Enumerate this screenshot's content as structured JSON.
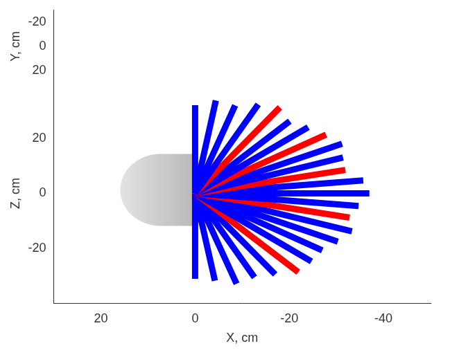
{
  "chart_data": {
    "type": "radial_bars",
    "xlabel": "X, cm",
    "ylabel": "Y, cm",
    "zlabel": "Z, cm",
    "xlim": [
      30,
      -50
    ],
    "xticks": [
      20,
      0,
      -20,
      -40
    ],
    "ylim": [
      30,
      -30
    ],
    "yticks": [
      -20,
      0,
      20
    ],
    "zlim": [
      -40,
      40
    ],
    "zticks": [
      -20,
      0,
      20
    ],
    "grid": false,
    "origin": {
      "x": 0,
      "z": 0
    },
    "bars": {
      "x": [
        0,
        -4.4,
        -8.5,
        -13.4,
        -18.0,
        -20.1,
        -24.0,
        -27.8,
        -31.2,
        -31.4,
        -31.9,
        -35.7,
        -37,
        -34.7,
        -32.8,
        -33.3,
        -30.3,
        -27.0,
        -24.7,
        -21.9,
        -17.0,
        -12.6,
        -8.8,
        -4.2,
        0
      ],
      "z": [
        32,
        33.7,
        31.9,
        32.3,
        31.2,
        26.2,
        24.0,
        21.3,
        18.0,
        13.0,
        8.5,
        4.7,
        0,
        -4.6,
        -8.8,
        -13.8,
        -17.5,
        -20.7,
        -24.7,
        -28.6,
        -29.4,
        -30.5,
        -32.8,
        -31.7,
        -31
      ],
      "colors": [
        "#0000ff",
        "#0000ff",
        "#0000ff",
        "#0000ff",
        "#ff0000",
        "#0000ff",
        "#0000ff",
        "#ff0000",
        "#0000ff",
        "#0000ff",
        "#ff0000",
        "#0000ff",
        "#0000ff",
        "#0000ff",
        "#ff0000",
        "#0000ff",
        "#0000ff",
        "#0000ff",
        "#0000ff",
        "#ff0000",
        "#0000ff",
        "#0000ff",
        "#0000ff",
        "#0000ff",
        "#0000ff"
      ]
    }
  }
}
